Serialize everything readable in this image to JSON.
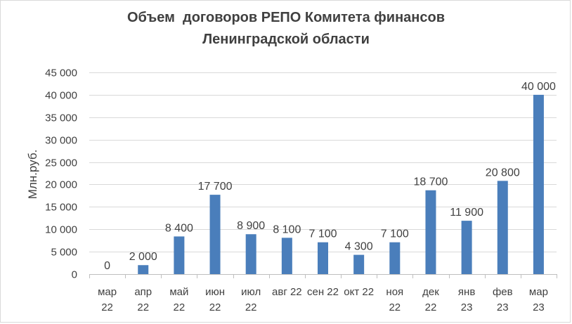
{
  "chart_data": {
    "type": "bar",
    "title_lines": [
      "Объем  договоров РЕПО Комитета финансов",
      "Ленинградской области"
    ],
    "ylabel": "Млн.руб.",
    "xlabel": "",
    "ylim": [
      0,
      45000
    ],
    "yticks": [
      0,
      5000,
      10000,
      15000,
      20000,
      25000,
      30000,
      35000,
      40000,
      45000
    ],
    "ytick_labels": [
      "0",
      "5 000",
      "10 000",
      "15 000",
      "20 000",
      "25 000",
      "30 000",
      "35 000",
      "40 000",
      "45 000"
    ],
    "grid": true,
    "legend": "none",
    "bar_color": "#4a7ebb",
    "categories": [
      [
        "мар",
        "22"
      ],
      [
        "апр",
        "22"
      ],
      [
        "май",
        "22"
      ],
      [
        "июн",
        "22"
      ],
      [
        "июл",
        "22"
      ],
      [
        "авг 22"
      ],
      [
        "сен 22"
      ],
      [
        "окт 22"
      ],
      [
        "ноя",
        "22"
      ],
      [
        "дек",
        "22"
      ],
      [
        "янв",
        "23"
      ],
      [
        "фев",
        "23"
      ],
      [
        "мар",
        "23"
      ]
    ],
    "values": [
      0,
      2000,
      8400,
      17700,
      8900,
      8100,
      7100,
      4300,
      7100,
      18700,
      11900,
      20800,
      40000
    ],
    "data_labels": [
      "0",
      "2 000",
      "8 400",
      "17 700",
      "8 900",
      "8 100",
      "7 100",
      "4 300",
      "7 100",
      "18 700",
      "11 900",
      "20 800",
      "40 000"
    ]
  }
}
